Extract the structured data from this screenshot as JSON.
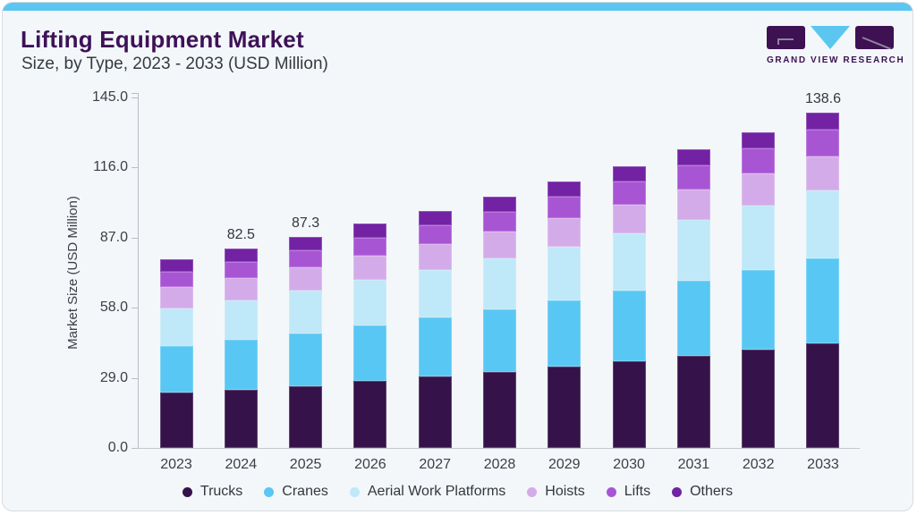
{
  "header": {
    "title": "Lifting Equipment Market",
    "subtitle": "Size, by Type, 2023 - 2033 (USD Million)",
    "logo_caption": "GRAND VIEW RESEARCH"
  },
  "colors": {
    "accent_strip": "#5bc7f1",
    "card_background": "#f3f7fa",
    "logo_purple": "#3d1152",
    "title_text": "#3e1257",
    "axis_line": "#b9bec5"
  },
  "chart_data": {
    "type": "bar",
    "stacked": true,
    "title": "Lifting Equipment Market",
    "subtitle": "Size, by Type, 2023 - 2033 (USD Million)",
    "xlabel": "",
    "ylabel": "Market Size (USD Million)",
    "ylim": [
      0,
      145
    ],
    "y_ticks": [
      "145.0",
      "116.0",
      "87.0",
      "58.0",
      "29.0",
      "0.0"
    ],
    "grid": false,
    "legend_position": "bottom",
    "categories": [
      "2023",
      "2024",
      "2025",
      "2026",
      "2027",
      "2028",
      "2029",
      "2030",
      "2031",
      "2032",
      "2033"
    ],
    "series": [
      {
        "name": "Trucks",
        "color": "#351249",
        "values": [
          22.9,
          24.2,
          25.7,
          27.7,
          29.5,
          31.5,
          33.6,
          35.8,
          38.1,
          40.6,
          43.3
        ]
      },
      {
        "name": "Cranes",
        "color": "#58c7f3",
        "values": [
          19.3,
          20.5,
          21.8,
          23.1,
          24.5,
          26.0,
          27.6,
          29.3,
          31.1,
          33.0,
          35.1
        ]
      },
      {
        "name": "Aerial Work Platforms",
        "color": "#bfe8f8",
        "values": [
          15.6,
          16.5,
          17.6,
          18.6,
          19.7,
          20.9,
          22.2,
          23.6,
          25.0,
          26.5,
          28.1
        ]
      },
      {
        "name": "Hoists",
        "color": "#d4abe9",
        "values": [
          8.7,
          9.1,
          9.6,
          10.0,
          10.5,
          11.0,
          11.6,
          12.1,
          12.7,
          13.3,
          14.0
        ]
      },
      {
        "name": "Lifts",
        "color": "#a855d4",
        "values": [
          6.4,
          6.8,
          7.1,
          7.6,
          8.0,
          8.4,
          8.9,
          9.4,
          9.9,
          10.5,
          11.1
        ]
      },
      {
        "name": "Others",
        "color": "#7222a3",
        "values": [
          5.2,
          5.4,
          5.5,
          5.7,
          5.9,
          6.0,
          6.2,
          6.4,
          6.6,
          6.8,
          7.0
        ]
      }
    ],
    "bar_total_labels": [
      "",
      "82.5",
      "87.3",
      "",
      "",
      "",
      "",
      "",
      "",
      "",
      "138.6"
    ]
  }
}
